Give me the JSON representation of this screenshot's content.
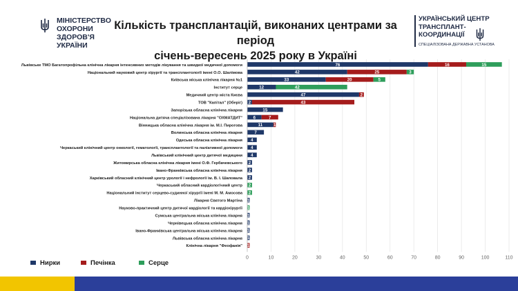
{
  "header": {
    "ministry_logo": "МІНІСТЕРСТВО\nОХОРОНИ\nЗДОРОВ'Я\nУКРАЇНИ",
    "title_line1": "Кількість трансплантацій, виконаних центрами за період",
    "title_line2": "січень-вересень 2025 року в Україні",
    "center_logo": "УКРАЇНСЬКИЙ ЦЕНТР\nТРАНСПЛАНТ-\nКООРДИНАЦІЇ",
    "center_logo_sub": "СПЕЦІАЛІЗОВАНА ДЕРЖАВНА УСТАНОВА"
  },
  "colors": {
    "kidney": "#1f3868",
    "liver": "#a51c1c",
    "heart": "#2e9e5b",
    "logo_navy": "#1f2a44",
    "footer_blue": "#2b3f9a",
    "footer_yellow": "#f2c500"
  },
  "chart_data": {
    "type": "bar",
    "orientation": "horizontal",
    "stacked": true,
    "categories": [
      "Львівське ТМО Багатопрофільна клінічна лікарня інтенсивних методів лікування та швидкої медичної допомоги",
      "Національний науковий центр хірургії та трансплантології імені О.О. Шалімова",
      "Київська міська клінічна лікарня №1",
      "Інститут серце",
      "Медичний центр міста Києва",
      "ТОВ \"Капітал\" (Оберіг)",
      "Запорізька обласна клінічна лікарня",
      "Національна дитяча спеціалізована лікарня \"ОХМАТДИТ\"",
      "Вінницька обласна клінічна лікарня ім. М.І. Пирогова",
      "Волинська обласна клінічна лікарня",
      "Одеська обласна клінічна лікарня",
      "Черкаський клінічний центр онкології, гематології, трансплантології та паліативної допомоги",
      "Львівський клінічний центр дитячої медицини",
      "Житомирська обласна клінічна лікарня імені О.Ф. Гербачевського",
      "Івано-Франківська обласна клінічна лікарня",
      "Харківський обласний клінічний центр урології і нефрології ім. В. І. Шаповала",
      "Черкаський обласний кардіологічний центр",
      "Національний інститут серцево-судинної хірургії імені М. М. Амосова",
      "Лікарня Святого Мартіна",
      "Науково-практичний центр дитячої кардіології та кардіохірургії",
      "Сумська центральна міська клінічна лікарня",
      "Чернівецька обласна клінічна лікарня",
      "Івано-Франківська центральна міська клінічна лікарня",
      "Львівська обласна клінічна лікарня",
      "Клінічна лікарня \"Феофанія\""
    ],
    "series": [
      {
        "name": "Нирки",
        "values": [
          76,
          42,
          33,
          0,
          47,
          2,
          15,
          6,
          11,
          7,
          4,
          4,
          4,
          2,
          2,
          2,
          0,
          0,
          1,
          0,
          1,
          1,
          1,
          1,
          0
        ]
      },
      {
        "name": "Печінка",
        "values": [
          16,
          25,
          20,
          0,
          2,
          43,
          0,
          7,
          1,
          0,
          0,
          0,
          0,
          0,
          0,
          0,
          0,
          0,
          0,
          0,
          0,
          0,
          0,
          0,
          1
        ]
      },
      {
        "name": "Серце",
        "values": [
          15,
          3,
          5,
          42,
          0,
          0,
          0,
          0,
          0,
          0,
          0,
          0,
          0,
          0,
          0,
          0,
          2,
          2,
          0,
          1,
          0,
          0,
          0,
          0,
          0
        ]
      }
    ],
    "special_bars": [
      {
        "category_index": 3,
        "series": "Нирки",
        "value": 12
      }
    ],
    "xlim": [
      0,
      110
    ],
    "xticks": [
      0,
      10,
      20,
      30,
      40,
      50,
      60,
      70,
      80,
      90,
      100,
      110
    ],
    "grid": true,
    "legend_position": "bottom-left"
  }
}
